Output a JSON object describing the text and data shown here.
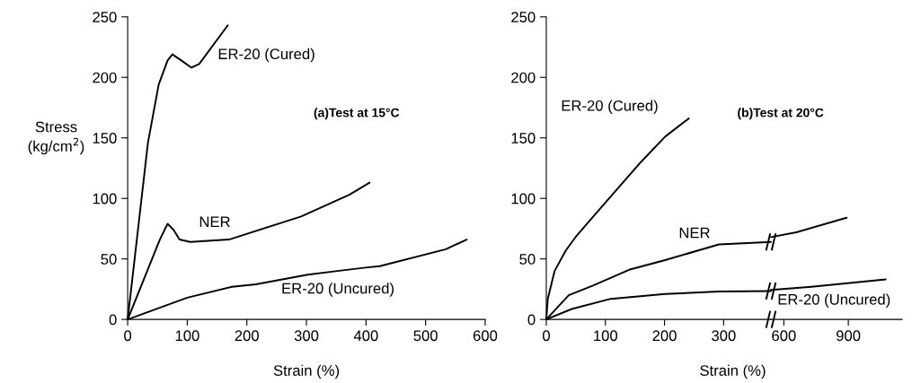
{
  "chart_data": [
    {
      "type": "line",
      "ylabel": "Stress\n(kg/cm$^{2}$)",
      "xlabel": "Strain (%)",
      "xlim": [
        0,
        600
      ],
      "xticks": [
        0,
        100,
        200,
        300,
        400,
        500,
        600
      ],
      "ylim": [
        0,
        250
      ],
      "yticks": [
        0,
        50,
        100,
        150,
        200,
        250
      ],
      "grid": false,
      "legend": false,
      "marker": "none",
      "line_style": "solid",
      "annotations": [
        "(a)Test at 15°C"
      ],
      "series": [
        {
          "name": "ER-20 (Cured)",
          "color": "#000000",
          "x": [
            0,
            34,
            52,
            67,
            75,
            90,
            107,
            120,
            168
          ],
          "values": [
            0,
            146,
            194,
            214,
            219,
            214,
            208,
            211,
            243
          ]
        },
        {
          "name": "NER",
          "color": "#000000",
          "x": [
            0,
            54,
            67,
            77,
            87,
            105,
            170,
            291,
            372,
            406
          ],
          "values": [
            0,
            66,
            79,
            74,
            66,
            64,
            66,
            85,
            103,
            113
          ]
        },
        {
          "name": "ER-20 (Uncured)",
          "color": "#000000",
          "x": [
            0,
            100,
            175,
            215,
            302,
            352,
            402,
            423,
            534,
            569
          ],
          "values": [
            0,
            18,
            27,
            29,
            37,
            40,
            43,
            44,
            58,
            66
          ]
        }
      ]
    },
    {
      "type": "line",
      "xlabel": "Strain (%)",
      "xlim": [
        0,
        380
      ],
      "xticks": [
        0,
        100,
        200,
        300
      ],
      "ylim": [
        0,
        250
      ],
      "yticks": [
        0,
        50,
        100,
        150,
        200,
        250
      ],
      "grid": false,
      "legend": false,
      "marker": "none",
      "line_style": "solid",
      "annotations": [
        "(b)Test at 20°C"
      ],
      "series": [
        {
          "name": "ER-20 (Cured)",
          "color": "#000000",
          "x": [
            0,
            2.5,
            14,
            33,
            51,
            99,
            160,
            201,
            241
          ],
          "values": [
            0,
            17,
            40,
            57,
            69,
            96,
            130,
            151,
            166
          ]
        },
        {
          "name": "NER",
          "color": "#000000",
          "x": [
            0,
            38,
            79,
            140,
            201,
            292,
            380
          ],
          "values": [
            0,
            20,
            28,
            41,
            49,
            62,
            64
          ]
        },
        {
          "color": "#000000",
          "x": [
            0,
            43,
            109,
            201,
            292,
            380
          ],
          "values": [
            0,
            8.6,
            17,
            21,
            23,
            23.5
          ]
        }
      ]
    },
    {
      "type": "line",
      "xlim": [
        540,
        1150
      ],
      "xticks": [
        600,
        900
      ],
      "ylim": [
        0,
        250
      ],
      "tick_labels": "x",
      "grid": false,
      "marker": "none",
      "line_style": "solid",
      "series": [
        {
          "color": "#000000",
          "x": [
            540,
            658,
            892
          ],
          "values": [
            68,
            72,
            84
          ]
        },
        {
          "name": "ER-20 (Uncured)",
          "color": "#000000",
          "x": [
            540,
            728,
            1074
          ],
          "values": [
            24.4,
            27,
            33
          ]
        }
      ]
    }
  ]
}
